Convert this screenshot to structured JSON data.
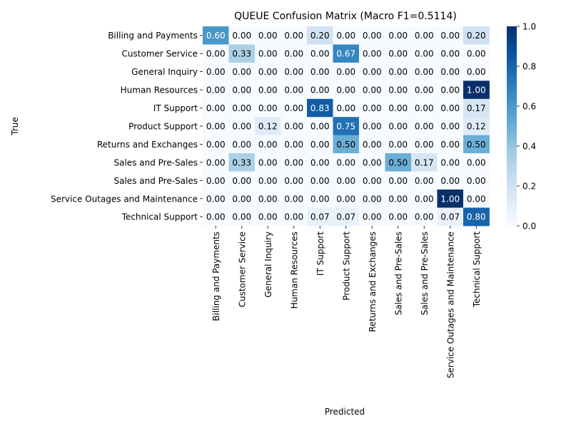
{
  "chart_data": {
    "type": "heatmap",
    "title": "QUEUE Confusion Matrix (Macro F1=0.5114)",
    "xlabel": "Predicted",
    "ylabel": "True",
    "row_labels": [
      "Billing and Payments",
      "Customer Service",
      "General Inquiry",
      "Human Resources",
      "IT Support",
      "Product Support",
      "Returns and Exchanges",
      "Sales and Pre-Sales",
      "Sales and Pre-Sales",
      "Service Outages and Maintenance",
      "Technical Support"
    ],
    "col_labels": [
      "Billing and Payments",
      "Customer Service",
      "General Inquiry",
      "Human Resources",
      "IT Support",
      "Product Support",
      "Returns and Exchanges",
      "Sales and Pre-Sales",
      "Sales and Pre-Sales",
      "Service Outages and Maintenance",
      "Technical Support"
    ],
    "values": [
      [
        0.6,
        0.0,
        0.0,
        0.0,
        0.2,
        0.0,
        0.0,
        0.0,
        0.0,
        0.0,
        0.2
      ],
      [
        0.0,
        0.33,
        0.0,
        0.0,
        0.0,
        0.67,
        0.0,
        0.0,
        0.0,
        0.0,
        0.0
      ],
      [
        0.0,
        0.0,
        0.0,
        0.0,
        0.0,
        0.0,
        0.0,
        0.0,
        0.0,
        0.0,
        0.0
      ],
      [
        0.0,
        0.0,
        0.0,
        0.0,
        0.0,
        0.0,
        0.0,
        0.0,
        0.0,
        0.0,
        1.0
      ],
      [
        0.0,
        0.0,
        0.0,
        0.0,
        0.83,
        0.0,
        0.0,
        0.0,
        0.0,
        0.0,
        0.17
      ],
      [
        0.0,
        0.0,
        0.12,
        0.0,
        0.0,
        0.75,
        0.0,
        0.0,
        0.0,
        0.0,
        0.12
      ],
      [
        0.0,
        0.0,
        0.0,
        0.0,
        0.0,
        0.5,
        0.0,
        0.0,
        0.0,
        0.0,
        0.5
      ],
      [
        0.0,
        0.33,
        0.0,
        0.0,
        0.0,
        0.0,
        0.0,
        0.5,
        0.17,
        0.0,
        0.0
      ],
      [
        0.0,
        0.0,
        0.0,
        0.0,
        0.0,
        0.0,
        0.0,
        0.0,
        0.0,
        0.0,
        0.0
      ],
      [
        0.0,
        0.0,
        0.0,
        0.0,
        0.0,
        0.0,
        0.0,
        0.0,
        0.0,
        1.0,
        0.0
      ],
      [
        0.0,
        0.0,
        0.0,
        0.0,
        0.07,
        0.07,
        0.0,
        0.0,
        0.0,
        0.07,
        0.8
      ]
    ],
    "value_format": "0.00",
    "colormap": "Blues",
    "vmin": 0.0,
    "vmax": 1.0,
    "colorbar_ticks": [
      "0.0",
      "0.2",
      "0.4",
      "0.6",
      "0.8",
      "1.0"
    ],
    "grid": false
  }
}
